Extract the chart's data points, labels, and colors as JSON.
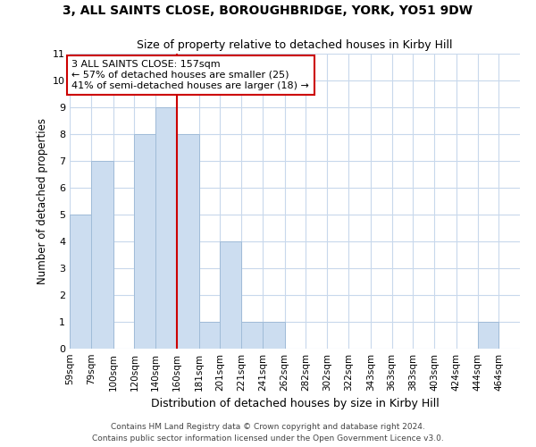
{
  "title1": "3, ALL SAINTS CLOSE, BOROUGHBRIDGE, YORK, YO51 9DW",
  "title2": "Size of property relative to detached houses in Kirby Hill",
  "xlabel": "Distribution of detached houses by size in Kirby Hill",
  "ylabel": "Number of detached properties",
  "bin_labels": [
    "59sqm",
    "79sqm",
    "100sqm",
    "120sqm",
    "140sqm",
    "160sqm",
    "181sqm",
    "201sqm",
    "221sqm",
    "241sqm",
    "262sqm",
    "282sqm",
    "302sqm",
    "322sqm",
    "343sqm",
    "363sqm",
    "383sqm",
    "403sqm",
    "424sqm",
    "444sqm",
    "464sqm"
  ],
  "bin_edges": [
    59,
    79,
    100,
    120,
    140,
    160,
    181,
    201,
    221,
    241,
    262,
    282,
    302,
    322,
    343,
    363,
    383,
    403,
    424,
    444,
    464,
    484
  ],
  "bar_values": [
    5,
    7,
    0,
    8,
    9,
    8,
    1,
    4,
    1,
    1,
    0,
    0,
    0,
    0,
    0,
    0,
    0,
    0,
    0,
    1,
    0
  ],
  "bar_color": "#ccddf0",
  "bar_edge_color": "#a0bcd8",
  "vline_x": 160,
  "vline_color": "#cc0000",
  "annotation_text": "3 ALL SAINTS CLOSE: 157sqm\n← 57% of detached houses are smaller (25)\n41% of semi-detached houses are larger (18) →",
  "annotation_box_color": "#ffffff",
  "annotation_box_edge": "#cc0000",
  "ylim": [
    0,
    11
  ],
  "yticks": [
    0,
    1,
    2,
    3,
    4,
    5,
    6,
    7,
    8,
    9,
    10,
    11
  ],
  "background_color": "#ffffff",
  "grid_color": "#c8d8ec",
  "footer1": "Contains HM Land Registry data © Crown copyright and database right 2024.",
  "footer2": "Contains public sector information licensed under the Open Government Licence v3.0."
}
